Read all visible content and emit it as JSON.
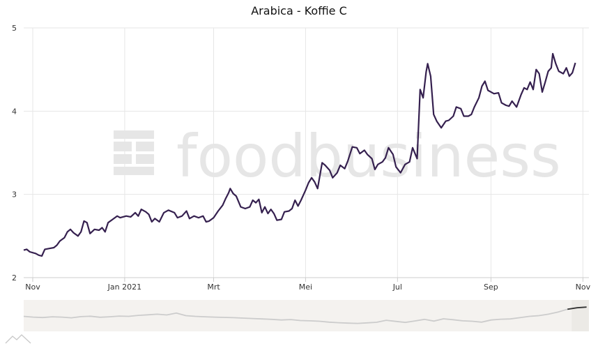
{
  "chart_data": {
    "type": "line",
    "title": "Arabica - Koffie C",
    "xlabel": "",
    "ylabel": "",
    "x_tick_labels": [
      "Nov",
      "Jan 2021",
      "Mrt",
      "Mei",
      "Jul",
      "Sep",
      "Nov"
    ],
    "x_tick_dates": [
      "2020-11-01",
      "2021-01-01",
      "2021-03-01",
      "2021-05-01",
      "2021-07-01",
      "2021-09-01",
      "2021-11-01"
    ],
    "y_ticks": [
      2,
      3,
      4,
      5
    ],
    "ylim": [
      2,
      5
    ],
    "xlim": [
      "2020-10-26",
      "2021-11-05"
    ],
    "grid": true,
    "watermark": "foodbusiness",
    "colors": {
      "line": "#35204f",
      "grid": "#e6e6e6",
      "navigator_line": "#cccccc",
      "navigator_selected_line": "#333333",
      "navigator_bg": "#f4f2ef",
      "navigator_selected_bg": "#eceae6"
    },
    "navigator_selection": [
      "2021-09-01",
      "2021-11-05"
    ],
    "series": [
      {
        "points": [
          [
            "2020-10-26",
            2.33
          ],
          [
            "2020-10-28",
            2.34
          ],
          [
            "2020-10-30",
            2.31
          ],
          [
            "2020-11-03",
            2.29
          ],
          [
            "2020-11-05",
            2.27
          ],
          [
            "2020-11-07",
            2.26
          ],
          [
            "2020-11-09",
            2.34
          ],
          [
            "2020-11-12",
            2.35
          ],
          [
            "2020-11-15",
            2.36
          ],
          [
            "2020-11-17",
            2.39
          ],
          [
            "2020-11-19",
            2.44
          ],
          [
            "2020-11-22",
            2.48
          ],
          [
            "2020-11-24",
            2.55
          ],
          [
            "2020-11-26",
            2.58
          ],
          [
            "2020-11-28",
            2.54
          ],
          [
            "2020-12-01",
            2.5
          ],
          [
            "2020-12-03",
            2.55
          ],
          [
            "2020-12-05",
            2.68
          ],
          [
            "2020-12-07",
            2.66
          ],
          [
            "2020-12-09",
            2.53
          ],
          [
            "2020-12-12",
            2.58
          ],
          [
            "2020-12-15",
            2.57
          ],
          [
            "2020-12-17",
            2.6
          ],
          [
            "2020-12-19",
            2.55
          ],
          [
            "2020-12-21",
            2.66
          ],
          [
            "2020-12-24",
            2.7
          ],
          [
            "2020-12-27",
            2.74
          ],
          [
            "2020-12-29",
            2.72
          ],
          [
            "2021-01-02",
            2.74
          ],
          [
            "2021-01-05",
            2.73
          ],
          [
            "2021-01-08",
            2.78
          ],
          [
            "2021-01-10",
            2.74
          ],
          [
            "2021-01-12",
            2.82
          ],
          [
            "2021-01-15",
            2.79
          ],
          [
            "2021-01-17",
            2.76
          ],
          [
            "2021-01-19",
            2.67
          ],
          [
            "2021-01-21",
            2.71
          ],
          [
            "2021-01-24",
            2.67
          ],
          [
            "2021-01-27",
            2.78
          ],
          [
            "2021-01-30",
            2.81
          ],
          [
            "2021-02-03",
            2.78
          ],
          [
            "2021-02-05",
            2.72
          ],
          [
            "2021-02-08",
            2.74
          ],
          [
            "2021-02-11",
            2.8
          ],
          [
            "2021-02-13",
            2.71
          ],
          [
            "2021-02-16",
            2.74
          ],
          [
            "2021-02-19",
            2.72
          ],
          [
            "2021-02-22",
            2.74
          ],
          [
            "2021-02-24",
            2.67
          ],
          [
            "2021-02-26",
            2.68
          ],
          [
            "2021-03-01",
            2.72
          ],
          [
            "2021-03-04",
            2.8
          ],
          [
            "2021-03-07",
            2.87
          ],
          [
            "2021-03-09",
            2.95
          ],
          [
            "2021-03-11",
            3.02
          ],
          [
            "2021-03-12",
            3.07
          ],
          [
            "2021-03-14",
            3.01
          ],
          [
            "2021-03-16",
            2.98
          ],
          [
            "2021-03-19",
            2.85
          ],
          [
            "2021-03-22",
            2.83
          ],
          [
            "2021-03-25",
            2.85
          ],
          [
            "2021-03-27",
            2.93
          ],
          [
            "2021-03-29",
            2.9
          ],
          [
            "2021-03-31",
            2.94
          ],
          [
            "2021-04-02",
            2.78
          ],
          [
            "2021-04-04",
            2.85
          ],
          [
            "2021-04-06",
            2.77
          ],
          [
            "2021-04-08",
            2.82
          ],
          [
            "2021-04-10",
            2.77
          ],
          [
            "2021-04-12",
            2.69
          ],
          [
            "2021-04-15",
            2.7
          ],
          [
            "2021-04-17",
            2.79
          ],
          [
            "2021-04-20",
            2.8
          ],
          [
            "2021-04-22",
            2.83
          ],
          [
            "2021-04-24",
            2.93
          ],
          [
            "2021-04-26",
            2.86
          ],
          [
            "2021-04-28",
            2.93
          ],
          [
            "2021-05-01",
            3.05
          ],
          [
            "2021-05-03",
            3.14
          ],
          [
            "2021-05-05",
            3.2
          ],
          [
            "2021-05-07",
            3.15
          ],
          [
            "2021-05-09",
            3.07
          ],
          [
            "2021-05-12",
            3.38
          ],
          [
            "2021-05-14",
            3.35
          ],
          [
            "2021-05-17",
            3.29
          ],
          [
            "2021-05-19",
            3.2
          ],
          [
            "2021-05-22",
            3.26
          ],
          [
            "2021-05-24",
            3.35
          ],
          [
            "2021-05-27",
            3.31
          ],
          [
            "2021-05-29",
            3.4
          ],
          [
            "2021-06-01",
            3.57
          ],
          [
            "2021-06-04",
            3.56
          ],
          [
            "2021-06-06",
            3.49
          ],
          [
            "2021-06-09",
            3.53
          ],
          [
            "2021-06-11",
            3.48
          ],
          [
            "2021-06-14",
            3.43
          ],
          [
            "2021-06-16",
            3.3
          ],
          [
            "2021-06-18",
            3.36
          ],
          [
            "2021-06-21",
            3.39
          ],
          [
            "2021-06-23",
            3.44
          ],
          [
            "2021-06-25",
            3.56
          ],
          [
            "2021-06-28",
            3.48
          ],
          [
            "2021-06-30",
            3.33
          ],
          [
            "2021-07-03",
            3.26
          ],
          [
            "2021-07-06",
            3.36
          ],
          [
            "2021-07-09",
            3.39
          ],
          [
            "2021-07-11",
            3.56
          ],
          [
            "2021-07-14",
            3.43
          ],
          [
            "2021-07-16",
            4.26
          ],
          [
            "2021-07-18",
            4.16
          ],
          [
            "2021-07-20",
            4.47
          ],
          [
            "2021-07-21",
            4.57
          ],
          [
            "2021-07-23",
            4.42
          ],
          [
            "2021-07-25",
            3.96
          ],
          [
            "2021-07-27",
            3.88
          ],
          [
            "2021-07-30",
            3.8
          ],
          [
            "2021-08-02",
            3.88
          ],
          [
            "2021-08-04",
            3.89
          ],
          [
            "2021-08-07",
            3.94
          ],
          [
            "2021-08-09",
            4.05
          ],
          [
            "2021-08-12",
            4.03
          ],
          [
            "2021-08-14",
            3.94
          ],
          [
            "2021-08-17",
            3.94
          ],
          [
            "2021-08-19",
            3.96
          ],
          [
            "2021-08-21",
            4.05
          ],
          [
            "2021-08-24",
            4.16
          ],
          [
            "2021-08-26",
            4.3
          ],
          [
            "2021-08-28",
            4.36
          ],
          [
            "2021-08-30",
            4.25
          ],
          [
            "2021-09-03",
            4.21
          ],
          [
            "2021-09-06",
            4.22
          ],
          [
            "2021-09-08",
            4.1
          ],
          [
            "2021-09-11",
            4.07
          ],
          [
            "2021-09-13",
            4.06
          ],
          [
            "2021-09-15",
            4.12
          ],
          [
            "2021-09-18",
            4.05
          ],
          [
            "2021-09-21",
            4.2
          ],
          [
            "2021-09-23",
            4.28
          ],
          [
            "2021-09-25",
            4.26
          ],
          [
            "2021-09-27",
            4.35
          ],
          [
            "2021-09-29",
            4.26
          ],
          [
            "2021-10-01",
            4.5
          ],
          [
            "2021-10-03",
            4.45
          ],
          [
            "2021-10-05",
            4.23
          ],
          [
            "2021-10-07",
            4.35
          ],
          [
            "2021-10-09",
            4.48
          ],
          [
            "2021-10-11",
            4.52
          ],
          [
            "2021-10-12",
            4.69
          ],
          [
            "2021-10-14",
            4.57
          ],
          [
            "2021-10-16",
            4.48
          ],
          [
            "2021-10-19",
            4.45
          ],
          [
            "2021-10-21",
            4.52
          ],
          [
            "2021-10-23",
            4.42
          ],
          [
            "2021-10-25",
            4.46
          ],
          [
            "2021-10-27",
            4.58
          ]
        ]
      }
    ],
    "navigator_series": {
      "start": "2016-01-01",
      "end": "2021-10-27",
      "values": [
        1.45,
        1.4,
        1.37,
        1.42,
        1.4,
        1.35,
        1.43,
        1.46,
        1.39,
        1.42,
        1.47,
        1.45,
        1.52,
        1.56,
        1.6,
        1.55,
        1.68,
        1.5,
        1.45,
        1.42,
        1.4,
        1.38,
        1.36,
        1.33,
        1.3,
        1.27,
        1.24,
        1.2,
        1.23,
        1.16,
        1.14,
        1.11,
        1.05,
        1.01,
        0.98,
        0.96,
        1.0,
        1.04,
        1.18,
        1.1,
        1.03,
        1.13,
        1.24,
        1.12,
        1.28,
        1.22,
        1.14,
        1.11,
        1.05,
        1.2,
        1.25,
        1.27,
        1.36,
        1.45,
        1.5,
        1.6,
        1.75,
        1.95,
        2.05,
        2.1
      ]
    }
  }
}
